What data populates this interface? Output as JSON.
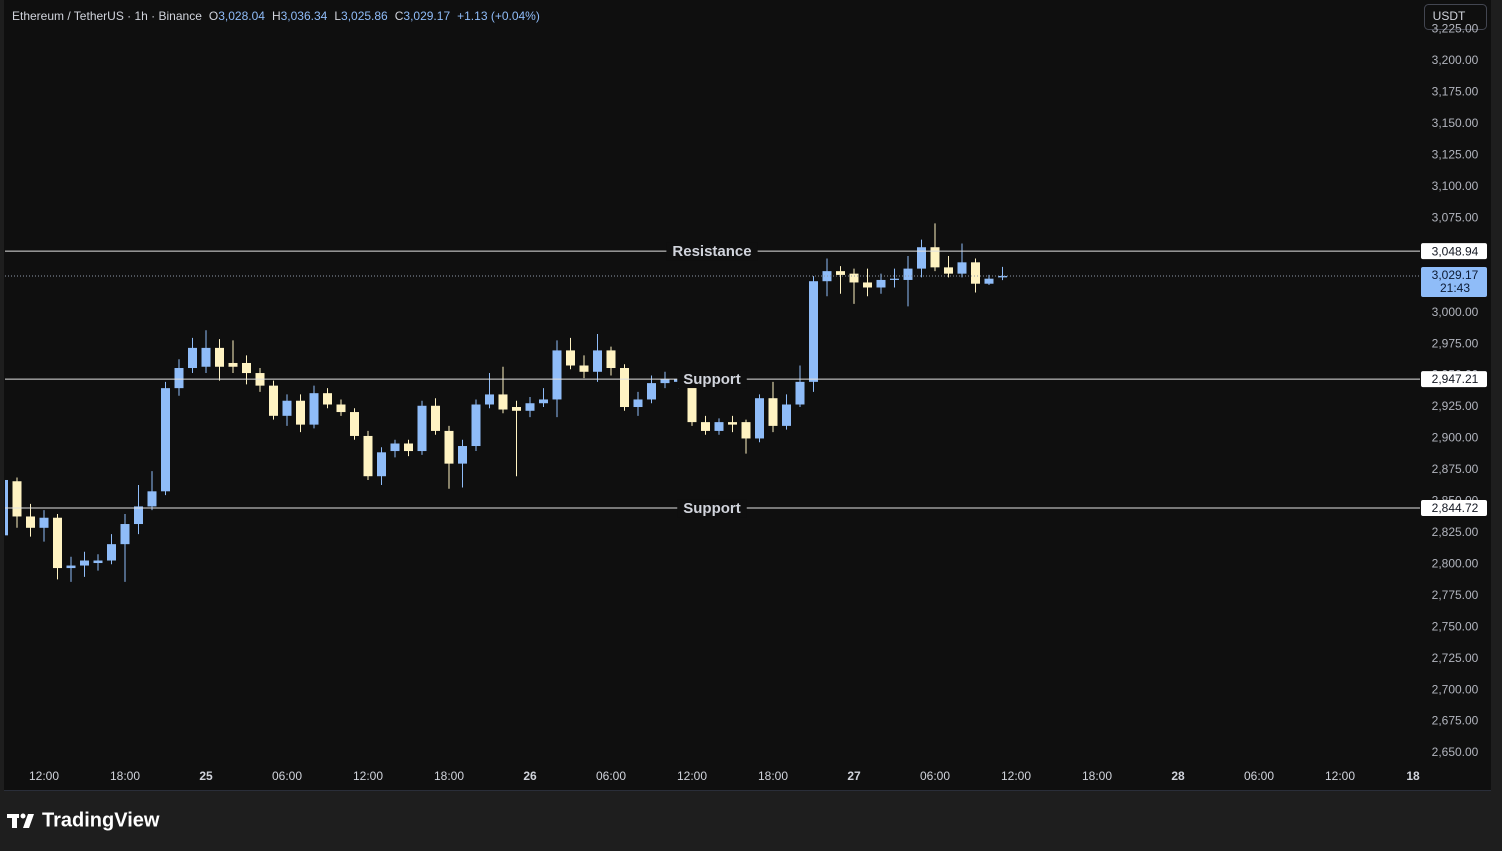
{
  "header": {
    "symbol": "Ethereum / TetherUS · 1h · Binance",
    "items": [
      {
        "key": "O",
        "value": "3,028.04"
      },
      {
        "key": "H",
        "value": "3,036.34"
      },
      {
        "key": "L",
        "value": "3,025.86"
      },
      {
        "key": "C",
        "value": "3,029.17"
      }
    ],
    "change": "+1.13 (+0.04%)",
    "currency_button": "USDT",
    "brand": "TradingView"
  },
  "chart_data": {
    "type": "candlestick",
    "up_color": "#8fbcf8",
    "down_color": "#fff3c2",
    "grid": false,
    "categories": [
      null,
      null,
      null,
      "12:00",
      null,
      null,
      null,
      null,
      null,
      "18:00",
      null,
      null,
      null,
      null,
      null,
      "25",
      null,
      null,
      null,
      null,
      null,
      "06:00",
      null,
      null,
      null,
      null,
      null,
      "12:00",
      null,
      null,
      null,
      null,
      null,
      "18:00",
      null,
      null,
      null,
      null,
      null,
      "26",
      null,
      null,
      null,
      null,
      null,
      "06:00",
      null,
      null,
      null,
      null,
      null,
      "12:00",
      null,
      null,
      null,
      null,
      null,
      "18:00",
      null,
      null,
      null,
      null,
      null,
      "27",
      null,
      null,
      null,
      null,
      null,
      "06:00",
      null,
      null,
      null,
      null,
      null,
      "12:00",
      null,
      null,
      null,
      null,
      null,
      "18:00",
      null,
      null,
      null,
      null,
      null,
      "28",
      null,
      null,
      null,
      null,
      null,
      "06:00",
      null,
      null,
      null,
      null,
      null,
      "12:00",
      null,
      null,
      null,
      null,
      null,
      "18"
    ],
    "open": [
      2823,
      2866,
      2838,
      2829,
      2837,
      2797,
      2799,
      2801,
      2803,
      2816,
      2832,
      2846,
      2858,
      2940,
      2956,
      2957,
      2972,
      2960,
      2960,
      2952,
      2942,
      2918,
      2930,
      2911,
      2936,
      2927,
      2921,
      2902,
      2870,
      2890,
      2896,
      2890,
      2926,
      2906,
      2880,
      2894,
      2927,
      2935,
      2925,
      2922,
      2928,
      2931,
      2970,
      2958,
      2953,
      2970,
      2956,
      2925,
      2931,
      2944,
      2945,
      2945,
      2913,
      2906,
      2913,
      2913,
      2900,
      2932,
      2910,
      2927,
      2945,
      3025,
      3033,
      3031,
      3024,
      3020,
      3026,
      3026,
      3035,
      3052,
      3036,
      3031,
      3040,
      3023,
      3028.04,
      null,
      null,
      null,
      null,
      null,
      null,
      null,
      null,
      null,
      null,
      null,
      null,
      null,
      null,
      null,
      null,
      null,
      null,
      null,
      null,
      null,
      null,
      null,
      null,
      null,
      null,
      null,
      null,
      null,
      null,
      null
    ],
    "high": [
      2884,
      2869,
      2848,
      2843,
      2840,
      2806,
      2810,
      2808,
      2824,
      2840,
      2863,
      2874,
      2945,
      2963,
      2980,
      2986,
      2979,
      2978,
      2966,
      2956,
      2946,
      2935,
      2935,
      2942,
      2940,
      2931,
      2924,
      2906,
      2893,
      2899,
      2899,
      2930,
      2932,
      2910,
      2899,
      2931,
      2952,
      2957,
      2930,
      2933,
      2940,
      2978,
      2980,
      2966,
      2983,
      2973,
      2959,
      2937,
      2950,
      2953,
      2952,
      2948,
      2918,
      2916,
      2918,
      2915,
      2935,
      2945,
      2935,
      2958,
      3029,
      3043,
      3037,
      3035,
      3035,
      3031,
      3035,
      3045,
      3058,
      3071,
      3045,
      3055,
      3043,
      3030,
      3036.34,
      null,
      null,
      null,
      null,
      null,
      null,
      null,
      null,
      null,
      null,
      null,
      null,
      null,
      null,
      null,
      null,
      null,
      null,
      null,
      null,
      null,
      null,
      null,
      null,
      null,
      null,
      null,
      null,
      null,
      null,
      null
    ],
    "low": [
      2820,
      2829,
      2822,
      2818,
      2788,
      2786,
      2790,
      2795,
      2800,
      2786,
      2824,
      2843,
      2855,
      2934,
      2952,
      2952,
      2946,
      2952,
      2943,
      2937,
      2915,
      2910,
      2905,
      2908,
      2924,
      2918,
      2899,
      2867,
      2863,
      2885,
      2886,
      2887,
      2903,
      2860,
      2861,
      2890,
      2924,
      2920,
      2870,
      2917,
      2925,
      2917,
      2955,
      2948,
      2945,
      2950,
      2922,
      2918,
      2928,
      2940,
      2940,
      2910,
      2903,
      2903,
      2905,
      2888,
      2897,
      2905,
      2907,
      2925,
      2937,
      3013,
      3015,
      3007,
      3013,
      3015,
      3020,
      3005,
      3028,
      3033,
      3028,
      3028,
      3016,
      3022,
      3025.86,
      null,
      null,
      null,
      null,
      null,
      null,
      null,
      null,
      null,
      null,
      null,
      null,
      null,
      null,
      null,
      null,
      null,
      null,
      null,
      null,
      null,
      null,
      null,
      null,
      null,
      null,
      null,
      null,
      null,
      null,
      null
    ],
    "close": [
      2867,
      2838,
      2829,
      2837,
      2797,
      2799,
      2803,
      2803,
      2816,
      2832,
      2846,
      2858,
      2940,
      2956,
      2972,
      2972,
      2957,
      2957,
      2952,
      2942,
      2918,
      2930,
      2911,
      2936,
      2927,
      2921,
      2902,
      2870,
      2889,
      2896,
      2890,
      2926,
      2906,
      2880,
      2894,
      2927,
      2935,
      2923,
      2922,
      2928,
      2931,
      2970,
      2958,
      2953,
      2970,
      2956,
      2925,
      2931,
      2944,
      2947,
      2947,
      2913,
      2906,
      2913,
      2911,
      2900,
      2932,
      2910,
      2927,
      2945,
      3025,
      3033,
      3030,
      3024,
      3020,
      3026,
      3027,
      3035,
      3052,
      3036,
      3031,
      3040,
      3023,
      3027,
      3029.17,
      null,
      null,
      null,
      null,
      null,
      null,
      null,
      null,
      null,
      null,
      null,
      null,
      null,
      null,
      null,
      null,
      null,
      null,
      null,
      null,
      null,
      null,
      null,
      null,
      null,
      null,
      null,
      null,
      null,
      null,
      null
    ],
    "ylim": [
      2620.6,
      3248.5
    ],
    "yticks": [
      {
        "value": 3225,
        "label": "3,225.00"
      },
      {
        "value": 3200,
        "label": "3,200.00"
      },
      {
        "value": 3175,
        "label": "3,175.00"
      },
      {
        "value": 3150,
        "label": "3,150.00"
      },
      {
        "value": 3125,
        "label": "3,125.00"
      },
      {
        "value": 3100,
        "label": "3,100.00"
      },
      {
        "value": 3075,
        "label": "3,075.00"
      },
      {
        "value": 3050,
        "label": "3,050.00"
      },
      {
        "value": 3025,
        "label": "3,025.00"
      },
      {
        "value": 3000,
        "label": "3,000.00"
      },
      {
        "value": 2975,
        "label": "2,975.00"
      },
      {
        "value": 2950,
        "label": "2,950.00"
      },
      {
        "value": 2925,
        "label": "2,925.00"
      },
      {
        "value": 2900,
        "label": "2,900.00"
      },
      {
        "value": 2875,
        "label": "2,875.00"
      },
      {
        "value": 2850,
        "label": "2,850.00"
      },
      {
        "value": 2825,
        "label": "2,825.00"
      },
      {
        "value": 2800,
        "label": "2,800.00"
      },
      {
        "value": 2775,
        "label": "2,775.00"
      },
      {
        "value": 2750,
        "label": "2,750.00"
      },
      {
        "value": 2725,
        "label": "2,725.00"
      },
      {
        "value": 2700,
        "label": "2,700.00"
      },
      {
        "value": 2675,
        "label": "2,675.00"
      },
      {
        "value": 2650,
        "label": "2,650.00"
      }
    ],
    "levels": [
      {
        "name": "Resistance",
        "value": 3048.94,
        "value_label": "3,048.94"
      },
      {
        "name": "Support",
        "value": 2947.21,
        "value_label": "2,947.21"
      },
      {
        "name": "Support",
        "value": 2844.72,
        "value_label": "2,844.72"
      }
    ],
    "last_price": {
      "value": 3029.17,
      "label": "3,029.17",
      "countdown": "21:43"
    }
  }
}
